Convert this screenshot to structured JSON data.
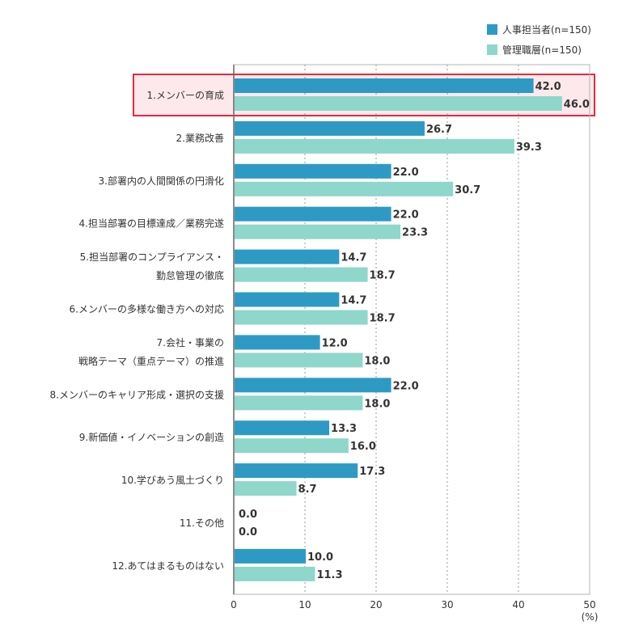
{
  "chart_data": {
    "type": "bar",
    "orientation": "horizontal",
    "categories": [
      [
        "1.メンバーの育成"
      ],
      [
        "2.業務改善"
      ],
      [
        "3.部署内の人間関係の円滑化"
      ],
      [
        "4.担当部署の目標達成／業務完遂"
      ],
      [
        "5.担当部署のコンプライアンス・",
        "勤怠管理の徹底"
      ],
      [
        "6.メンバーの多様な働き方への対応"
      ],
      [
        "7.会社・事業の",
        "戦略テーマ（重点テーマ）の推進"
      ],
      [
        "8.メンバーのキャリア形成・選択の支援"
      ],
      [
        "9.新価値・イノベーションの創造"
      ],
      [
        "10.学びあう風土づくり"
      ],
      [
        "11.その他"
      ],
      [
        "12.あてはまるものはない"
      ]
    ],
    "series": [
      {
        "name": "人事担当者(n=150)",
        "color": "#2e9ac4",
        "values": [
          42.0,
          26.7,
          22.0,
          22.0,
          14.7,
          14.7,
          12.0,
          22.0,
          13.3,
          17.3,
          0.0,
          10.0
        ]
      },
      {
        "name": "管理職層(n=150)",
        "color": "#8fd6cb",
        "values": [
          46.0,
          39.3,
          30.7,
          23.3,
          18.7,
          18.7,
          18.0,
          18.0,
          16.0,
          8.7,
          0.0,
          11.3
        ]
      }
    ],
    "xlim": [
      0,
      50
    ],
    "xticks": [
      "0",
      "10",
      "20",
      "30",
      "40",
      "50"
    ],
    "xunit": "(%)",
    "grid": "vertical dotted",
    "legend": "top-right",
    "highlight_index": 0,
    "highlight_color": "#e8283c"
  }
}
